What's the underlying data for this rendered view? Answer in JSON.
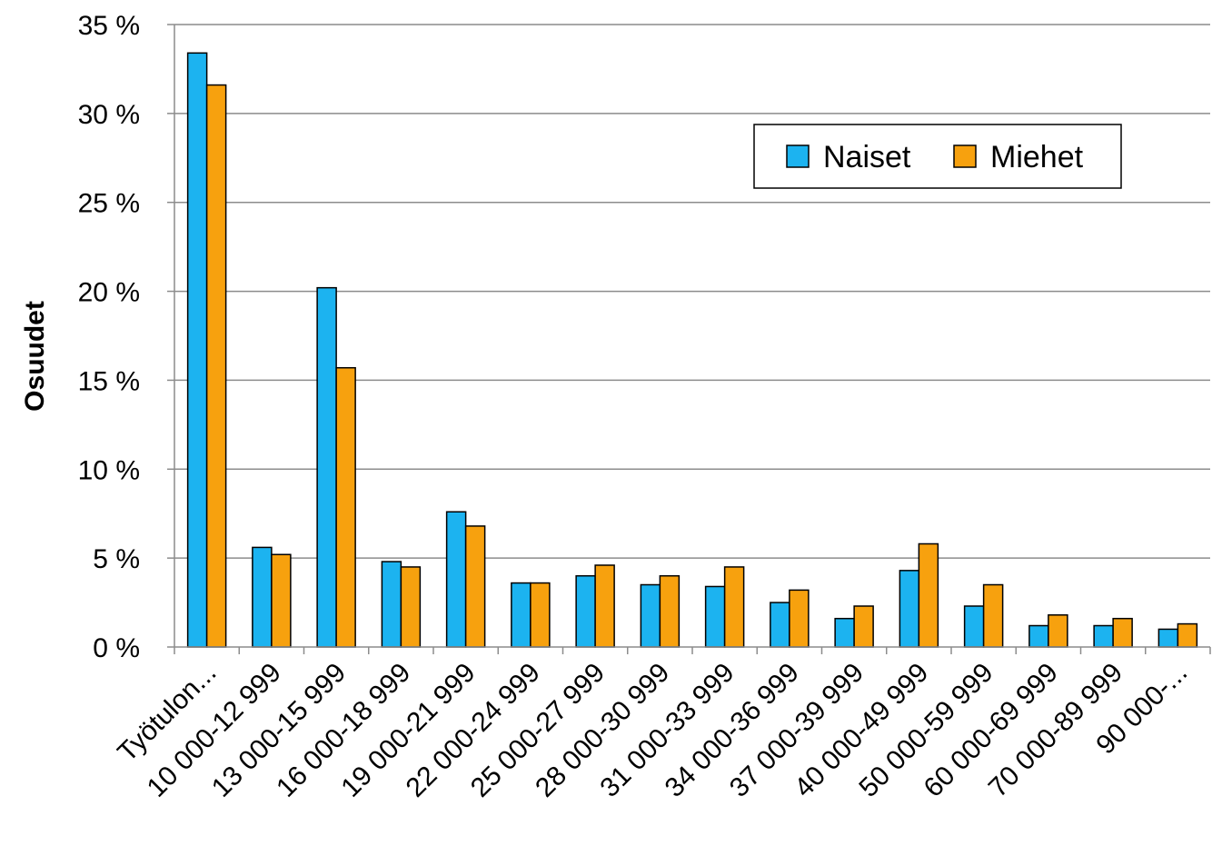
{
  "chart_data": {
    "type": "bar",
    "title": "",
    "xlabel": "",
    "ylabel": "Osuudet",
    "ylim": [
      0,
      35
    ],
    "y_ticks": [
      {
        "value": 0,
        "label": "0 %"
      },
      {
        "value": 5,
        "label": "5 %"
      },
      {
        "value": 10,
        "label": "10 %"
      },
      {
        "value": 15,
        "label": "15 %"
      },
      {
        "value": 20,
        "label": "20 %"
      },
      {
        "value": 25,
        "label": "25 %"
      },
      {
        "value": 30,
        "label": "30 %"
      },
      {
        "value": 35,
        "label": "35 %"
      }
    ],
    "grid": true,
    "legend_position": "top-right",
    "categories": [
      "Työtulon...",
      "10 000-12 999",
      "13 000-15 999",
      "16 000-18 999",
      "19 000-21 999",
      "22 000-24 999",
      "25 000-27 999",
      "28 000-30 999",
      "31 000-33 999",
      "34 000-36 999",
      "37 000-39 999",
      "40 000-49 999",
      "50 000-59 999",
      "60 000-69 999",
      "70 000-89 999",
      "90 000-..."
    ],
    "series": [
      {
        "name": "Naiset",
        "color": "#1cb3f0",
        "values": [
          33.4,
          5.6,
          20.2,
          4.8,
          7.6,
          3.6,
          4.0,
          3.5,
          3.4,
          2.5,
          1.6,
          4.3,
          2.3,
          1.2,
          1.2,
          1.0
        ]
      },
      {
        "name": "Miehet",
        "color": "#f7a10e",
        "values": [
          31.6,
          5.2,
          15.7,
          4.5,
          6.8,
          3.6,
          4.6,
          4.0,
          4.5,
          3.2,
          2.3,
          5.8,
          3.5,
          1.8,
          1.6,
          1.3
        ]
      }
    ]
  }
}
